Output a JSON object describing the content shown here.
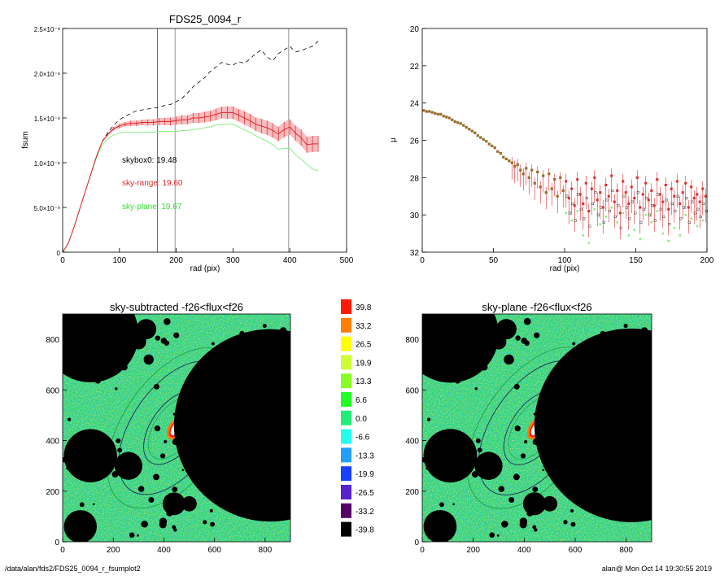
{
  "colors": {
    "black": "#000000",
    "red": "#e0282a",
    "pink": "#f3a0a4",
    "green": "#33dd33",
    "lightgreen": "#88ee88",
    "gray": "#8a8a8a",
    "bg_image": "#22dd66",
    "navy": "#1b2f57",
    "brown": "#9a6a2a"
  },
  "chart_data": [
    {
      "type": "line",
      "title": "FDS25_0094_r",
      "xlabel": "rad (pix)",
      "ylabel": "fsum",
      "xlim": [
        0,
        500
      ],
      "ylim": [
        0,
        2.5e-08
      ],
      "xticks": [
        0,
        100,
        200,
        300,
        400,
        500
      ],
      "xtick_labels": [
        "0",
        "100",
        "200",
        "300",
        "400",
        "500"
      ],
      "yticks": [
        0,
        5e-09,
        1e-08,
        1.5e-08,
        2e-08,
        2.5e-08
      ],
      "ytick_labels": [
        "0",
        "5.0×10⁻⁹",
        "1.0×10⁻⁸",
        "1.5×10⁻⁸",
        "2.0×10⁻⁸",
        "2.5×10⁻⁸"
      ],
      "vlines": [
        {
          "x": 167,
          "color": "red"
        },
        {
          "x": 198,
          "color": "gray"
        },
        {
          "x": 398,
          "color": "gray"
        }
      ],
      "annotations": [
        {
          "text": "skybox0: 19.48",
          "color": "black"
        },
        {
          "text": "sky-range: 19.60",
          "color": "red"
        },
        {
          "text": "sky-plane: 19.67",
          "color": "green"
        }
      ],
      "series": [
        {
          "style": "dashed-black",
          "x": [
            0,
            10,
            20,
            30,
            40,
            50,
            60,
            70,
            80,
            90,
            100,
            110,
            120,
            130,
            140,
            150,
            160,
            170,
            180,
            190,
            200,
            210,
            220,
            230,
            240,
            250,
            260,
            270,
            280,
            290,
            300,
            310,
            320,
            330,
            340,
            350,
            360,
            370,
            380,
            390,
            400,
            410,
            420,
            430,
            440,
            450
          ],
          "y": [
            0,
            1e-09,
            2.8e-09,
            4.8e-09,
            6.8e-09,
            8.8e-09,
            1.08e-08,
            1.24e-08,
            1.34e-08,
            1.42e-08,
            1.48e-08,
            1.52e-08,
            1.55e-08,
            1.58e-08,
            1.59e-08,
            1.6e-08,
            1.61e-08,
            1.62e-08,
            1.64e-08,
            1.65e-08,
            1.68e-08,
            1.72e-08,
            1.78e-08,
            1.85e-08,
            1.9e-08,
            1.95e-08,
            2.02e-08,
            2.07e-08,
            2.12e-08,
            2.1e-08,
            2.09e-08,
            2.13e-08,
            2.11e-08,
            2.16e-08,
            2.22e-08,
            2.26e-08,
            2.18e-08,
            2.14e-08,
            2.22e-08,
            2.26e-08,
            2.3e-08,
            2.24e-08,
            2.25e-08,
            2.28e-08,
            2.3e-08,
            2.36e-08
          ]
        },
        {
          "style": "red-errorbars",
          "x": [
            0,
            10,
            20,
            30,
            40,
            50,
            60,
            70,
            80,
            90,
            100,
            110,
            120,
            130,
            140,
            150,
            160,
            170,
            180,
            190,
            200,
            210,
            220,
            230,
            240,
            250,
            260,
            270,
            280,
            290,
            300,
            310,
            320,
            330,
            340,
            350,
            360,
            370,
            380,
            390,
            400,
            410,
            420,
            430,
            440,
            450
          ],
          "y": [
            0,
            1e-09,
            2.8e-09,
            4.8e-09,
            6.8e-09,
            8.8e-09,
            1.08e-08,
            1.24e-08,
            1.32e-08,
            1.38e-08,
            1.41e-08,
            1.43e-08,
            1.44e-08,
            1.44e-08,
            1.45e-08,
            1.45e-08,
            1.45e-08,
            1.46e-08,
            1.46e-08,
            1.46e-08,
            1.47e-08,
            1.48e-08,
            1.48e-08,
            1.5e-08,
            1.5e-08,
            1.51e-08,
            1.52e-08,
            1.54e-08,
            1.56e-08,
            1.56e-08,
            1.56e-08,
            1.53e-08,
            1.5e-08,
            1.47e-08,
            1.43e-08,
            1.41e-08,
            1.39e-08,
            1.36e-08,
            1.32e-08,
            1.37e-08,
            1.4e-08,
            1.33e-08,
            1.28e-08,
            1.2e-08,
            1.21e-08,
            1.21e-08
          ],
          "err": [
            0,
            0,
            0,
            0,
            0,
            0,
            0,
            1e-10,
            1.5e-10,
            2e-10,
            2.5e-10,
            2.5e-10,
            3e-10,
            3e-10,
            3e-10,
            3.5e-10,
            3.5e-10,
            4e-10,
            4e-10,
            4.5e-10,
            4.5e-10,
            5e-10,
            5e-10,
            5.5e-10,
            5.5e-10,
            6e-10,
            6e-10,
            6.5e-10,
            6.5e-10,
            7e-10,
            7e-10,
            7e-10,
            7.5e-10,
            7.5e-10,
            7.5e-10,
            8e-10,
            8e-10,
            8e-10,
            8e-10,
            8.5e-10,
            8.5e-10,
            8.5e-10,
            9e-10,
            9e-10,
            9e-10,
            9e-10
          ]
        },
        {
          "style": "green",
          "x": [
            0,
            10,
            20,
            30,
            40,
            50,
            60,
            70,
            80,
            90,
            100,
            110,
            120,
            130,
            140,
            150,
            160,
            170,
            180,
            190,
            200,
            210,
            220,
            230,
            240,
            250,
            260,
            270,
            280,
            290,
            300,
            310,
            320,
            330,
            340,
            350,
            360,
            370,
            380,
            390,
            400,
            410,
            420,
            430,
            440,
            450
          ],
          "y": [
            0,
            1e-09,
            2.8e-09,
            4.8e-09,
            6.8e-09,
            8.8e-09,
            1.06e-08,
            1.2e-08,
            1.27e-08,
            1.31e-08,
            1.33e-08,
            1.34e-08,
            1.34e-08,
            1.34e-08,
            1.34e-08,
            1.34e-08,
            1.34e-08,
            1.35e-08,
            1.35e-08,
            1.35e-08,
            1.35e-08,
            1.36e-08,
            1.36e-08,
            1.37e-08,
            1.38e-08,
            1.39e-08,
            1.4e-08,
            1.42e-08,
            1.43e-08,
            1.43e-08,
            1.43e-08,
            1.4e-08,
            1.37e-08,
            1.34e-08,
            1.3e-08,
            1.27e-08,
            1.24e-08,
            1.2e-08,
            1.15e-08,
            1.16e-08,
            1.16e-08,
            1.09e-08,
            1.04e-08,
            9.8e-09,
            9.3e-09,
            9.1e-09
          ]
        }
      ]
    },
    {
      "type": "scatter",
      "title": "",
      "xlabel": "rad (pix)",
      "ylabel": "μ",
      "xlim": [
        0,
        200
      ],
      "ylim": [
        32,
        20
      ],
      "xticks": [
        0,
        50,
        100,
        150,
        200
      ],
      "xtick_labels": [
        "0",
        "50",
        "100",
        "150",
        "200"
      ],
      "yticks": [
        20,
        22,
        24,
        26,
        28,
        30,
        32
      ],
      "ytick_labels": [
        "20",
        "22",
        "24",
        "26",
        "28",
        "30",
        "32"
      ],
      "profile_x": [
        1,
        3,
        5,
        7,
        9,
        11,
        13,
        15,
        17,
        19,
        21,
        23,
        25,
        27,
        29,
        31,
        33,
        35,
        37,
        39,
        41,
        43,
        45,
        47,
        49,
        51,
        53,
        55,
        57,
        59,
        61,
        63,
        65,
        67,
        69,
        71,
        73,
        75,
        77,
        79,
        81,
        83,
        85,
        87,
        89,
        91,
        93,
        95,
        97,
        99
      ],
      "profile_y": [
        24.4,
        24.45,
        24.45,
        24.5,
        24.55,
        24.6,
        24.6,
        24.7,
        24.75,
        24.8,
        24.9,
        25.0,
        25.05,
        25.1,
        25.2,
        25.3,
        25.4,
        25.5,
        25.6,
        25.75,
        25.85,
        25.95,
        26.05,
        26.2,
        26.3,
        26.4,
        26.6,
        26.7,
        26.9,
        27.0,
        27.1,
        27.2,
        27.4,
        27.3,
        27.6,
        27.8,
        27.5,
        28.0,
        27.6,
        28.3,
        27.7,
        28.5,
        27.9,
        28.8,
        27.8,
        28.6,
        28.1,
        29.0,
        28.0,
        28.7
      ],
      "tail_x": [
        101,
        103,
        105,
        107,
        109,
        111,
        113,
        115,
        117,
        119,
        121,
        123,
        125,
        127,
        129,
        131,
        133,
        135,
        137,
        139,
        141,
        143,
        145,
        147,
        149,
        151,
        153,
        155,
        157,
        159,
        161,
        163,
        165,
        167,
        169,
        171,
        173,
        175,
        177,
        179,
        181,
        183,
        185,
        187,
        189,
        191,
        193,
        195,
        197,
        199
      ],
      "tail_y": [
        28.2,
        29.1,
        28.6,
        29.5,
        28.1,
        28.9,
        29.4,
        28.3,
        29.8,
        28.6,
        28.0,
        29.2,
        28.8,
        29.6,
        28.4,
        29.0,
        27.9,
        29.3,
        28.7,
        29.9,
        28.2,
        28.8,
        29.4,
        28.5,
        29.1,
        28.0,
        29.6,
        28.9,
        28.3,
        29.2,
        28.7,
        29.5,
        28.1,
        28.9,
        29.3,
        28.4,
        29.7,
        28.6,
        29.0,
        28.2,
        29.4,
        28.8,
        28.3,
        29.6,
        28.5,
        29.1,
        28.9,
        29.3,
        28.6,
        29.0
      ]
    },
    {
      "type": "heatmap",
      "title": "sky-subtracted -f26<flux<f26",
      "xlim": [
        0,
        900
      ],
      "ylim": [
        0,
        900
      ],
      "xticks": [
        0,
        200,
        400,
        600,
        800
      ],
      "xtick_labels": [
        "0",
        "200",
        "400",
        "600",
        "800"
      ],
      "yticks": [
        0,
        200,
        400,
        600,
        800
      ],
      "ytick_labels": [
        "0",
        "200",
        "400",
        "600",
        "800"
      ]
    },
    {
      "type": "heatmap",
      "title": "sky-plane -f26<flux<f26",
      "xlim": [
        0,
        900
      ],
      "ylim": [
        0,
        900
      ],
      "xticks": [
        0,
        200,
        400,
        600,
        800
      ],
      "xtick_labels": [
        "0",
        "200",
        "400",
        "600",
        "800"
      ],
      "yticks": [
        0,
        200,
        400,
        600,
        800
      ],
      "ytick_labels": [
        "0",
        "200",
        "400",
        "600",
        "800"
      ]
    }
  ],
  "colorbar": {
    "labels": [
      "39.8",
      "33.2",
      "26.5",
      "19.9",
      "13.3",
      "6.6",
      "0.0",
      "-6.6",
      "-13.3",
      "-19.9",
      "-26.5",
      "-33.2",
      "-39.8"
    ],
    "colors": [
      "#ff1a00",
      "#ff8000",
      "#ffff00",
      "#ccff33",
      "#88ff22",
      "#22ff22",
      "#22ee77",
      "#22ffee",
      "#22a0ff",
      "#1a40ff",
      "#5522cc",
      "#550066",
      "#000000"
    ]
  },
  "footer": {
    "left": "/data/alan/fds2/FDS25_0094_r_fsumplot2",
    "right": "alan@  Mon Oct 14 19:30:55 2019"
  }
}
